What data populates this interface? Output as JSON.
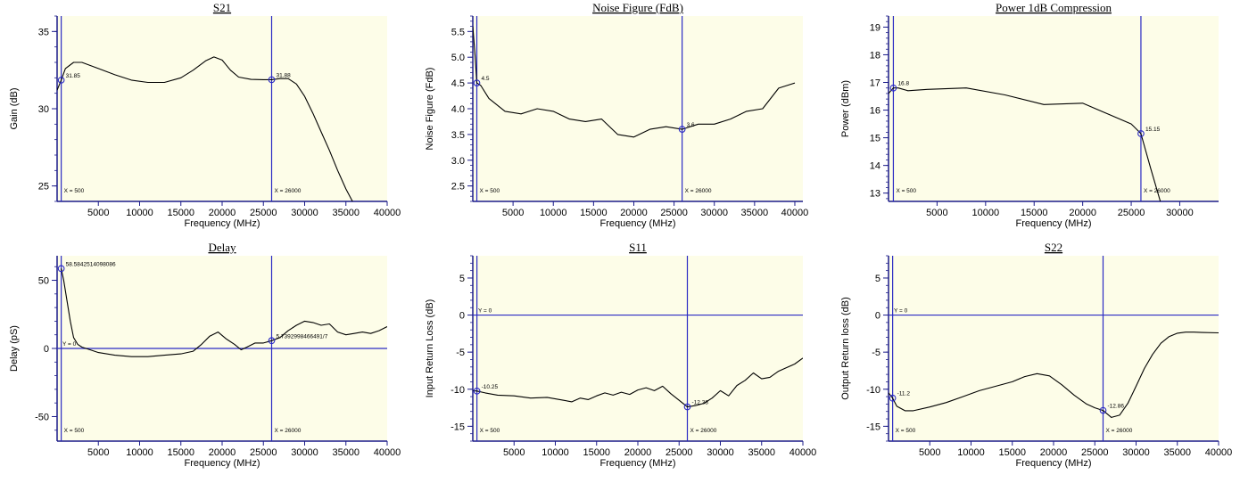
{
  "colors": {
    "plot_background": "#fdfde8",
    "axis": "#1c1c8a",
    "marker_line": "#2b2bc4",
    "series": "#000000"
  },
  "chart_data": [
    {
      "type": "line",
      "title": "S21",
      "xlabel": "Frequency (MHz)",
      "ylabel": "Gain (dB)",
      "xlim": [
        0,
        40000
      ],
      "ylim": [
        24,
        36
      ],
      "xticks": [
        5000,
        10000,
        15000,
        20000,
        25000,
        30000,
        35000,
        40000
      ],
      "yticks": [
        25,
        30,
        35
      ],
      "grid": false,
      "series": [
        {
          "x": [
            0,
            500,
            1000,
            2000,
            3000,
            5000,
            7000,
            9000,
            11000,
            13000,
            15000,
            16500,
            18000,
            19000,
            20000,
            21000,
            22000,
            23500,
            25000,
            26000,
            27000,
            28000,
            29000,
            30000,
            31000,
            32000,
            33000,
            34000,
            35000,
            36000,
            37000
          ],
          "y": [
            31.2,
            31.85,
            32.6,
            33.0,
            33.0,
            32.6,
            32.2,
            31.85,
            31.7,
            31.7,
            32.0,
            32.5,
            33.1,
            33.35,
            33.15,
            32.5,
            32.05,
            31.9,
            31.88,
            31.88,
            31.95,
            31.95,
            31.6,
            30.8,
            29.7,
            28.5,
            27.3,
            26.0,
            24.8,
            23.8,
            23.0
          ]
        }
      ],
      "markers": [
        {
          "x": 500,
          "y": 31.85,
          "label": "31.85"
        },
        {
          "x": 26000,
          "y": 31.88,
          "label": "31.88"
        }
      ],
      "vlines": [
        {
          "x": 500,
          "label": "X = 500"
        },
        {
          "x": 26000,
          "label": "X = 26000"
        }
      ],
      "hlines": []
    },
    {
      "type": "line",
      "title": "Noise Figure (FdB)",
      "xlabel": "Frequency (MHz)",
      "ylabel": "Noise Figure (FdB)",
      "xlim": [
        0,
        41000
      ],
      "ylim": [
        2.2,
        5.8
      ],
      "xticks": [
        5000,
        10000,
        15000,
        20000,
        25000,
        30000,
        35000,
        40000
      ],
      "yticks": [
        2.5,
        3.0,
        3.5,
        4.0,
        4.5,
        5.0,
        5.5
      ],
      "grid": false,
      "series": [
        {
          "x": [
            0,
            300,
            500,
            1000,
            2000,
            4000,
            6000,
            8000,
            10000,
            12000,
            14000,
            16000,
            18000,
            20000,
            22000,
            24000,
            26000,
            28000,
            30000,
            32000,
            34000,
            36000,
            38000,
            40000
          ],
          "y": [
            5.6,
            5.0,
            4.5,
            4.45,
            4.2,
            3.95,
            3.9,
            4.0,
            3.95,
            3.8,
            3.75,
            3.8,
            3.5,
            3.45,
            3.6,
            3.65,
            3.6,
            3.7,
            3.7,
            3.8,
            3.95,
            4.0,
            4.4,
            4.5
          ]
        }
      ],
      "markers": [
        {
          "x": 500,
          "y": 4.5,
          "label": "4.5"
        },
        {
          "x": 26000,
          "y": 3.6,
          "label": "3.6"
        }
      ],
      "vlines": [
        {
          "x": 500,
          "label": "X = 500"
        },
        {
          "x": 26000,
          "label": "X = 26000"
        }
      ],
      "hlines": []
    },
    {
      "type": "line",
      "title": "Power 1dB Compression",
      "xlabel": "Frequency (MHz)",
      "ylabel": "Power (dBm)",
      "xlim": [
        0,
        34000
      ],
      "ylim": [
        12.7,
        19.4
      ],
      "xticks": [
        5000,
        10000,
        15000,
        20000,
        25000,
        30000
      ],
      "yticks": [
        13,
        14,
        15,
        16,
        17,
        18,
        19
      ],
      "grid": false,
      "series": [
        {
          "x": [
            0,
            500,
            1000,
            2000,
            4000,
            8000,
            12000,
            16000,
            20000,
            22000,
            25000,
            26000,
            27000,
            28000
          ],
          "y": [
            16.6,
            16.8,
            16.8,
            16.7,
            16.75,
            16.8,
            16.55,
            16.2,
            16.25,
            15.95,
            15.5,
            15.15,
            13.9,
            12.7
          ]
        }
      ],
      "markers": [
        {
          "x": 500,
          "y": 16.8,
          "label": "16.8"
        },
        {
          "x": 26000,
          "y": 15.15,
          "label": "15.15"
        }
      ],
      "vlines": [
        {
          "x": 500,
          "label": "X = 500"
        },
        {
          "x": 26000,
          "label": "X = 26000"
        }
      ],
      "hlines": []
    },
    {
      "type": "line",
      "title": "Delay",
      "xlabel": "Frequency (MHz)",
      "ylabel": "Delay (pS)",
      "xlim": [
        0,
        40000
      ],
      "ylim": [
        -68,
        68
      ],
      "xticks": [
        5000,
        10000,
        15000,
        20000,
        25000,
        30000,
        35000,
        40000
      ],
      "yticks": [
        -50,
        0,
        50
      ],
      "grid": false,
      "series": [
        {
          "x": [
            500,
            800,
            1200,
            1600,
            2000,
            2500,
            3000,
            4000,
            5000,
            7000,
            9000,
            11000,
            13000,
            15000,
            16500,
            17500,
            18500,
            19500,
            20500,
            21500,
            22300,
            23000,
            24000,
            25000,
            26000,
            27000,
            28000,
            29000,
            30000,
            31000,
            32000,
            33000,
            34000,
            35000,
            36000,
            37000,
            38000,
            39000,
            40000
          ],
          "y": [
            58.6,
            50,
            35,
            20,
            8,
            3,
            1,
            -1,
            -3,
            -5,
            -6,
            -6,
            -5,
            -4,
            -2,
            3,
            9,
            12,
            7,
            3,
            -1,
            1,
            4,
            4,
            5.7,
            8,
            13,
            17,
            20,
            19,
            17,
            18,
            12,
            10,
            11,
            12,
            11,
            13,
            16
          ]
        }
      ],
      "markers": [
        {
          "x": 500,
          "y": 58.6,
          "label": "58.5842514098086"
        },
        {
          "x": 26000,
          "y": 5.7,
          "label": "5.7392998466491/7"
        }
      ],
      "vlines": [
        {
          "x": 500,
          "label": "X = 500"
        },
        {
          "x": 26000,
          "label": "X = 26000"
        }
      ],
      "hlines": [
        {
          "y": 0,
          "label": "Y = 0"
        }
      ]
    },
    {
      "type": "line",
      "title": "S11",
      "xlabel": "Frequency (MHz)",
      "ylabel": "Input Return Loss (dB)",
      "xlim": [
        0,
        40000
      ],
      "ylim": [
        -17,
        8
      ],
      "xticks": [
        5000,
        10000,
        15000,
        20000,
        25000,
        30000,
        35000,
        40000
      ],
      "yticks": [
        -15,
        -10,
        -5,
        0,
        5
      ],
      "grid": false,
      "series": [
        {
          "x": [
            0,
            500,
            1500,
            3000,
            5000,
            7000,
            9000,
            11000,
            12000,
            13000,
            14000,
            15000,
            16000,
            17000,
            18000,
            19000,
            20000,
            21000,
            22000,
            23000,
            24000,
            25000,
            26000,
            27000,
            28000,
            29000,
            30000,
            31000,
            32000,
            33000,
            34000,
            35000,
            36000,
            37000,
            38000,
            39000,
            40000
          ],
          "y": [
            -10.2,
            -10.25,
            -10.5,
            -10.8,
            -10.9,
            -11.2,
            -11.1,
            -11.5,
            -11.7,
            -11.2,
            -11.4,
            -10.9,
            -10.5,
            -10.8,
            -10.4,
            -10.7,
            -10.1,
            -9.8,
            -10.2,
            -9.6,
            -10.6,
            -11.5,
            -12.38,
            -12.2,
            -11.9,
            -11.2,
            -10.2,
            -10.9,
            -9.5,
            -8.8,
            -7.8,
            -8.6,
            -8.4,
            -7.6,
            -7.1,
            -6.6,
            -5.8
          ]
        }
      ],
      "markers": [
        {
          "x": 500,
          "y": -10.25,
          "label": "-10.25"
        },
        {
          "x": 26000,
          "y": -12.38,
          "label": "-12.38"
        }
      ],
      "vlines": [
        {
          "x": 500,
          "label": "X = 500"
        },
        {
          "x": 26000,
          "label": "X = 26000"
        }
      ],
      "hlines": [
        {
          "y": 0,
          "label": "Y = 0"
        }
      ]
    },
    {
      "type": "line",
      "title": "S22",
      "xlabel": "Frequency (MHz)",
      "ylabel": "Output Return loss (dB)",
      "xlim": [
        0,
        40000
      ],
      "ylim": [
        -17,
        8
      ],
      "xticks": [
        5000,
        10000,
        15000,
        20000,
        25000,
        30000,
        35000,
        40000
      ],
      "yticks": [
        -15,
        -10,
        -5,
        0,
        5
      ],
      "grid": false,
      "series": [
        {
          "x": [
            0,
            500,
            1000,
            2000,
            3000,
            5000,
            7000,
            9000,
            11000,
            13000,
            15000,
            16500,
            18000,
            19500,
            21000,
            22500,
            24000,
            25000,
            26000,
            27000,
            28000,
            29000,
            30000,
            31000,
            32000,
            33000,
            34000,
            35000,
            36000,
            37000,
            38000,
            40000
          ],
          "y": [
            -10.5,
            -11.2,
            -12.3,
            -12.9,
            -12.9,
            -12.4,
            -11.8,
            -11.0,
            -10.2,
            -9.6,
            -9.0,
            -8.3,
            -7.9,
            -8.2,
            -9.4,
            -10.8,
            -12.0,
            -12.5,
            -12.86,
            -13.8,
            -13.5,
            -11.9,
            -9.6,
            -7.2,
            -5.3,
            -3.8,
            -2.9,
            -2.45,
            -2.3,
            -2.3,
            -2.35,
            -2.4
          ]
        }
      ],
      "markers": [
        {
          "x": 500,
          "y": -11.2,
          "label": "-11.2"
        },
        {
          "x": 26000,
          "y": -12.86,
          "label": "-12.86"
        }
      ],
      "vlines": [
        {
          "x": 500,
          "label": "X = 500"
        },
        {
          "x": 26000,
          "label": "X = 26000"
        }
      ],
      "hlines": [
        {
          "y": 0,
          "label": "Y = 0"
        }
      ]
    }
  ]
}
